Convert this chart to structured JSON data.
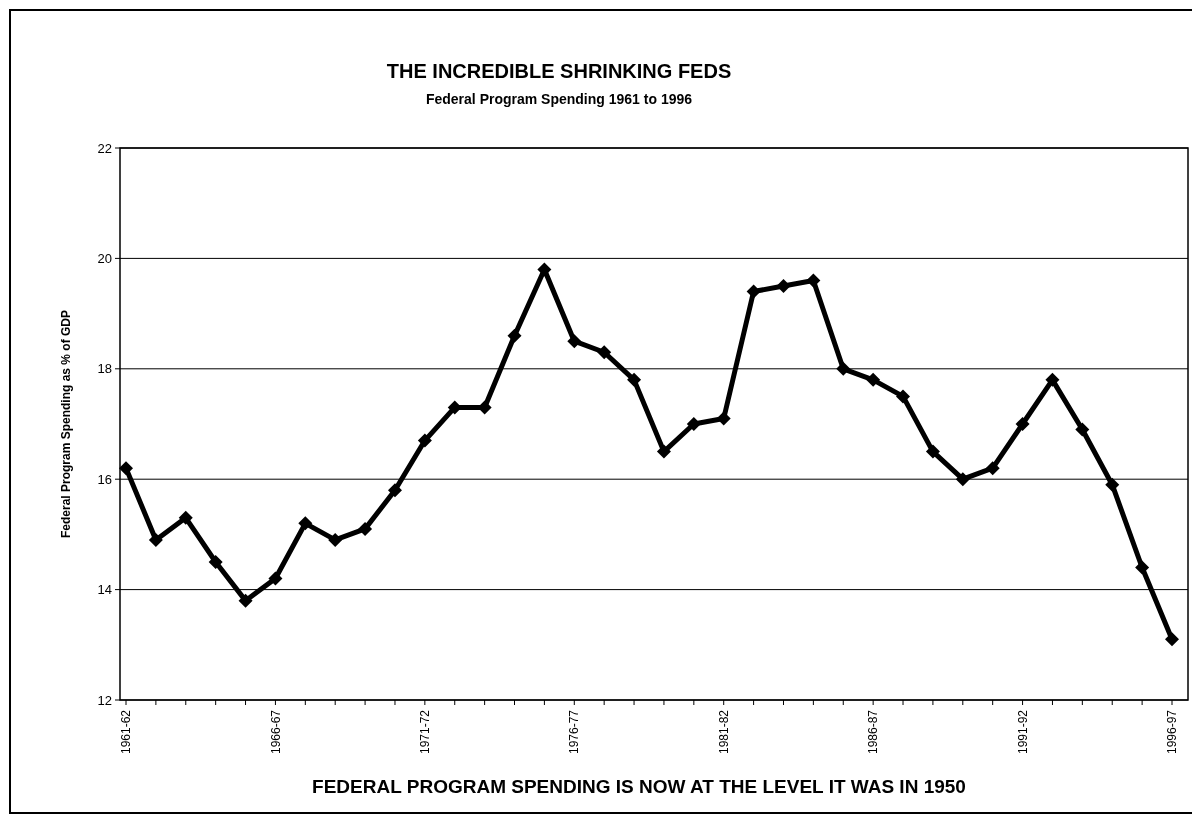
{
  "chart_data": {
    "type": "line",
    "title": "THE INCREDIBLE SHRINKING FEDS",
    "subtitle": "Federal Program Spending 1961 to 1996",
    "ylabel": "Federal Program Spending as % of GDP",
    "annotations": [
      "FEDERAL PROGRAM SPENDING IS NOW AT THE LEVEL IT WAS IN 1950"
    ],
    "categories": [
      "1961-62",
      null,
      null,
      null,
      null,
      "1966-67",
      null,
      null,
      null,
      null,
      "1971-72",
      null,
      null,
      null,
      null,
      "1976-77",
      null,
      null,
      null,
      null,
      "1981-82",
      null,
      null,
      null,
      null,
      "1986-87",
      null,
      null,
      null,
      null,
      "1991-92",
      null,
      null,
      null,
      null,
      "1996-97"
    ],
    "series": [
      {
        "color": "#000000",
        "values": [
          16.2,
          14.9,
          15.3,
          14.5,
          13.8,
          14.2,
          15.2,
          14.9,
          15.1,
          15.8,
          16.7,
          17.3,
          17.3,
          18.6,
          19.8,
          18.5,
          18.3,
          17.8,
          16.5,
          17.0,
          17.1,
          19.4,
          19.5,
          19.6,
          18.0,
          17.8,
          17.5,
          16.5,
          16.0,
          16.2,
          17.0,
          17.8,
          16.9,
          15.9,
          14.4,
          13.1
        ]
      }
    ],
    "ylim": [
      12,
      22
    ],
    "yticks": [
      12,
      14,
      16,
      18,
      20,
      22
    ],
    "grid": "y",
    "marker": "diamond",
    "line_style": "solid"
  }
}
